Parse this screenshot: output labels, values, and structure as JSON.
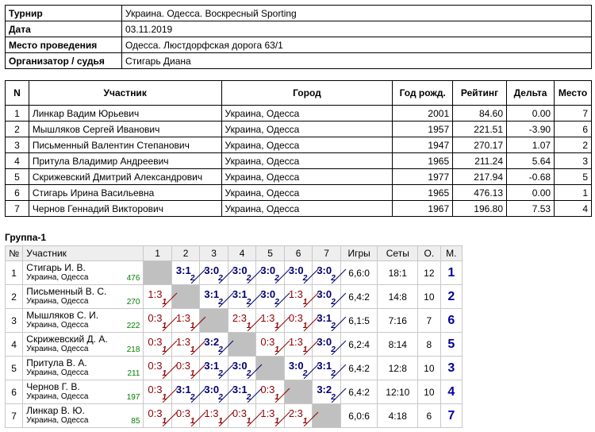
{
  "info": [
    {
      "label": "Турнир",
      "value": "Украина. Одесса. Воскресный Sporting"
    },
    {
      "label": "Дата",
      "value": "03.11.2019"
    },
    {
      "label": "Место проведения",
      "value": "Одесса. Люстдорфская дорога 63/1"
    },
    {
      "label": "Организатор / судья",
      "value": "Стигарь Диана"
    }
  ],
  "players_table": {
    "headers": [
      "N",
      "Участник",
      "Город",
      "Год рожд.",
      "Рейтинг",
      "Дельта",
      "Место"
    ],
    "rows": [
      [
        "1",
        "Линкар Вадим Юрьевич",
        "Украина, Одесса",
        "2001",
        "84.60",
        "0.00",
        "7"
      ],
      [
        "2",
        "Мышляков Сергей Иванович",
        "Украина, Одесса",
        "1957",
        "221.51",
        "-3.90",
        "6"
      ],
      [
        "3",
        "Письменный Валентин Степанович",
        "Украина, Одесса",
        "1947",
        "270.17",
        "1.07",
        "2"
      ],
      [
        "4",
        "Притула Владимир Андреевич",
        "Украина, Одесса",
        "1965",
        "211.24",
        "5.64",
        "3"
      ],
      [
        "5",
        "Скрижевский Дмитрий Александрович",
        "Украина, Одесса",
        "1977",
        "217.94",
        "-0.68",
        "5"
      ],
      [
        "6",
        "Стигарь Ирина Васильевна",
        "Украина, Одесса",
        "1965",
        "476.13",
        "0.00",
        "1"
      ],
      [
        "7",
        "Чернов Геннадий Викторович",
        "Украина, Одесса",
        "1967",
        "196.80",
        "7.53",
        "4"
      ]
    ]
  },
  "group": {
    "title": "Группа-1",
    "headers": [
      "№",
      "Участник",
      "1",
      "2",
      "3",
      "4",
      "5",
      "6",
      "7",
      "Игры",
      "Сеты",
      "О.",
      "М."
    ],
    "rows": [
      {
        "n": "1",
        "name": "Стигарь И. В.",
        "city": "Украина, Одесса",
        "rating": "476",
        "results": [
          null,
          [
            "3:1",
            "2"
          ],
          [
            "3:0",
            "2"
          ],
          [
            "3:0",
            "2"
          ],
          [
            "3:0",
            "2"
          ],
          [
            "3:0",
            "2"
          ],
          [
            "3:0",
            "2"
          ]
        ],
        "games": "6,6:0",
        "sets": "18:1",
        "points": "12",
        "place": "1"
      },
      {
        "n": "2",
        "name": "Письменный В. С.",
        "city": "Украина, Одесса",
        "rating": "270",
        "results": [
          [
            "1:3",
            "1"
          ],
          null,
          [
            "3:1",
            "2"
          ],
          [
            "3:1",
            "2"
          ],
          [
            "3:0",
            "2"
          ],
          [
            "1:3",
            "1"
          ],
          [
            "3:0",
            "2"
          ]
        ],
        "games": "6,4:2",
        "sets": "14:8",
        "points": "10",
        "place": "2"
      },
      {
        "n": "3",
        "name": "Мышляков С. И.",
        "city": "Украина, Одесса",
        "rating": "222",
        "results": [
          [
            "0:3",
            "1"
          ],
          [
            "1:3",
            "1"
          ],
          null,
          [
            "2:3",
            "1"
          ],
          [
            "1:3",
            "1"
          ],
          [
            "0:3",
            "1"
          ],
          [
            "3:1",
            "2"
          ]
        ],
        "games": "6,1:5",
        "sets": "7:16",
        "points": "7",
        "place": "6"
      },
      {
        "n": "4",
        "name": "Скрижевский Д. А.",
        "city": "Украина, Одесса",
        "rating": "218",
        "results": [
          [
            "0:3",
            "1"
          ],
          [
            "1:3",
            "1"
          ],
          [
            "3:2",
            "2"
          ],
          null,
          [
            "0:3",
            "1"
          ],
          [
            "1:3",
            "1"
          ],
          [
            "3:0",
            "2"
          ]
        ],
        "games": "6,2:4",
        "sets": "8:14",
        "points": "8",
        "place": "5"
      },
      {
        "n": "5",
        "name": "Притула В. А.",
        "city": "Украина, Одесса",
        "rating": "211",
        "results": [
          [
            "0:3",
            "1"
          ],
          [
            "0:3",
            "1"
          ],
          [
            "3:1",
            "2"
          ],
          [
            "3:0",
            "2"
          ],
          null,
          [
            "3:0",
            "2"
          ],
          [
            "3:1",
            "2"
          ]
        ],
        "games": "6,4:2",
        "sets": "12:8",
        "points": "10",
        "place": "3"
      },
      {
        "n": "6",
        "name": "Чернов Г. В.",
        "city": "Украина, Одесса",
        "rating": "197",
        "results": [
          [
            "0:3",
            "1"
          ],
          [
            "3:1",
            "2"
          ],
          [
            "3:0",
            "2"
          ],
          [
            "3:1",
            "2"
          ],
          [
            "0:3",
            "1"
          ],
          null,
          [
            "3:2",
            "2"
          ]
        ],
        "games": "6,4:2",
        "sets": "12:10",
        "points": "10",
        "place": "4"
      },
      {
        "n": "7",
        "name": "Линкар В. Ю.",
        "city": "Украина, Одесса",
        "rating": "85",
        "results": [
          [
            "0:3",
            "1"
          ],
          [
            "0:3",
            "1"
          ],
          [
            "1:3",
            "1"
          ],
          [
            "0:3",
            "1"
          ],
          [
            "1:3",
            "1"
          ],
          [
            "2:3",
            "1"
          ],
          null
        ],
        "games": "6,0:6",
        "sets": "4:18",
        "points": "6",
        "place": "7"
      }
    ]
  },
  "colors": {
    "win": "#000070",
    "loss": "#900000",
    "rating": "#008000",
    "place": "#0000a0",
    "self_cell": "#c0c0c0"
  }
}
